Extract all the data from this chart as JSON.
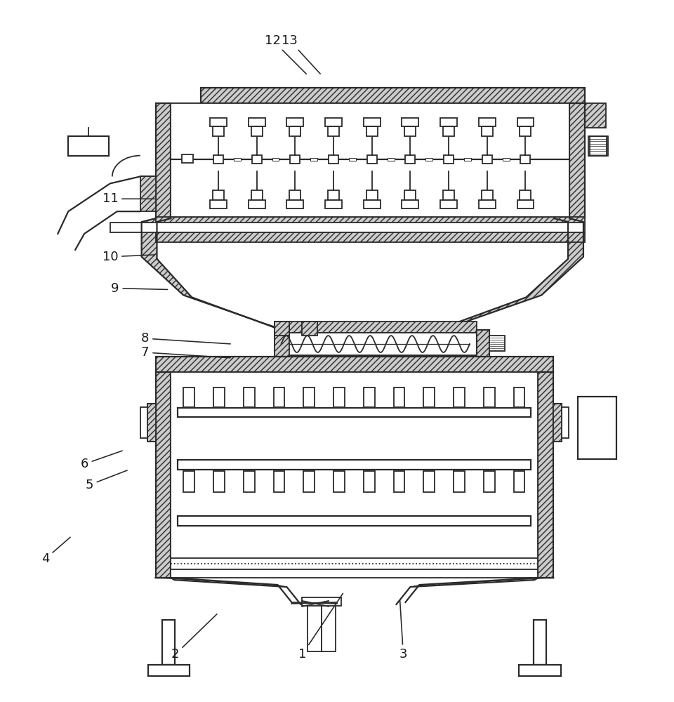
{
  "bg_color": "#ffffff",
  "line_color": "#2a2a2a",
  "figsize": [
    9.6,
    10.0
  ],
  "dpi": 100,
  "label_color": "#1a1a1a",
  "labels_data": [
    [
      "1",
      430,
      65,
      490,
      155
    ],
    [
      "2",
      248,
      65,
      310,
      125
    ],
    [
      "3",
      575,
      65,
      570,
      145
    ],
    [
      "4",
      62,
      202,
      100,
      235
    ],
    [
      "5",
      125,
      308,
      182,
      330
    ],
    [
      "6",
      118,
      338,
      175,
      358
    ],
    [
      "7",
      205,
      498,
      330,
      490
    ],
    [
      "8",
      205,
      518,
      330,
      510
    ],
    [
      "9",
      162,
      590,
      240,
      588
    ],
    [
      "10",
      155,
      635,
      222,
      638
    ],
    [
      "11",
      155,
      718,
      222,
      718
    ],
    [
      "12",
      388,
      945,
      438,
      895
    ],
    [
      "13",
      412,
      945,
      458,
      895
    ]
  ]
}
